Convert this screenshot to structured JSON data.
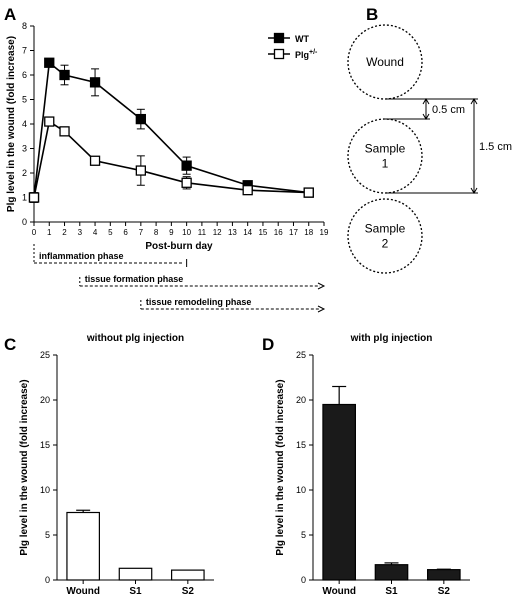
{
  "panels": {
    "a": "A",
    "b": "B",
    "c": "C",
    "d": "D"
  },
  "chart_data": [
    {
      "id": "A",
      "type": "line",
      "xlabel": "Post-burn day",
      "ylabel": "Plg level in the wound (fold increase)",
      "xlim": [
        0,
        19
      ],
      "ylim": [
        0,
        8
      ],
      "xticks": [
        0,
        1,
        2,
        3,
        4,
        5,
        6,
        7,
        8,
        9,
        10,
        11,
        12,
        13,
        14,
        15,
        16,
        17,
        18,
        19
      ],
      "yticks": [
        0,
        1,
        2,
        3,
        4,
        5,
        6,
        7,
        8
      ],
      "legend_position": "top-right",
      "series": [
        {
          "name": "WT",
          "marker": "filled-square",
          "x": [
            0,
            1,
            2,
            4,
            7,
            10,
            14,
            18
          ],
          "y": [
            1.0,
            6.5,
            6.0,
            5.7,
            4.2,
            2.3,
            1.5,
            1.2
          ],
          "err": [
            0.2,
            0.1,
            0.4,
            0.55,
            0.4,
            0.35,
            0.1,
            0.1
          ]
        },
        {
          "name": "Plg+/-",
          "marker": "open-square",
          "x": [
            0,
            1,
            2,
            4,
            7,
            10,
            14,
            18
          ],
          "y": [
            1.0,
            4.1,
            3.7,
            2.5,
            2.1,
            1.6,
            1.3,
            1.2
          ],
          "err": [
            0.1,
            0.15,
            0.1,
            0.1,
            0.6,
            0.25,
            0.1,
            0.1
          ]
        }
      ]
    },
    {
      "id": "C",
      "type": "bar",
      "title": "without plg injection",
      "ylabel": "Plg level in the wound (fold increase)",
      "categories": [
        "Wound",
        "S1",
        "S2"
      ],
      "values": [
        7.5,
        1.3,
        1.1
      ],
      "err": [
        0.25,
        0,
        0
      ],
      "fill": "open",
      "ylim": [
        0,
        25
      ],
      "yticks": [
        0,
        5,
        10,
        15,
        20,
        25
      ]
    },
    {
      "id": "D",
      "type": "bar",
      "title": "with plg injection",
      "ylabel": "Plg level in the wound (fold increase)",
      "categories": [
        "Wound",
        "S1",
        "S2"
      ],
      "values": [
        19.5,
        1.7,
        1.15
      ],
      "err": [
        2.0,
        0.2,
        0.05
      ],
      "fill": "filled",
      "ylim": [
        0,
        25
      ],
      "yticks": [
        0,
        5,
        10,
        15,
        20,
        25
      ]
    }
  ],
  "phases": [
    "inflammation phase",
    "tissue formation phase",
    "tissue remodeling phase"
  ],
  "phase_spans": [
    [
      0,
      10
    ],
    [
      3,
      19
    ],
    [
      7,
      19
    ]
  ],
  "diagram": {
    "circles": [
      "Wound",
      "Sample\n1",
      "Sample\n2"
    ],
    "small_distance": "0.5 cm",
    "large_distance": "1.5 cm"
  },
  "colors": {
    "ink": "#000000",
    "open_fill": "#ffffff",
    "filled": "#1a1a1a"
  }
}
